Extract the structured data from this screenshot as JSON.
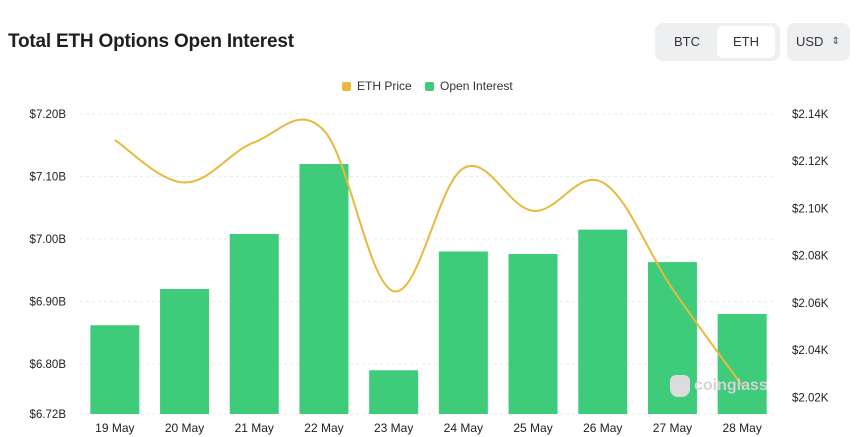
{
  "header": {
    "title": "Total ETH Options Open Interest",
    "toggle": {
      "btc_label": "BTC",
      "eth_label": "ETH",
      "selected": "ETH"
    },
    "currency": {
      "label": "USD",
      "icon": "updown-chevron-icon"
    }
  },
  "watermark": "coinglass",
  "colors": {
    "bars": "#3ecb7a",
    "price_line": "#e8b93c"
  },
  "chart_data": {
    "type": "bar",
    "title": "Total ETH Options Open Interest",
    "legend": {
      "placement": "top-center",
      "entries": [
        "ETH Price",
        "Open Interest"
      ]
    },
    "categories": [
      "19 May",
      "20 May",
      "21 May",
      "22 May",
      "23 May",
      "24 May",
      "25 May",
      "26 May",
      "27 May",
      "28 May"
    ],
    "y_left": {
      "ticks": [
        "$7.20B",
        "$7.10B",
        "$7.00B",
        "$6.90B",
        "$6.80B",
        "$6.72B"
      ],
      "tick_values": [
        7.2,
        7.1,
        7.0,
        6.9,
        6.8,
        6.72
      ],
      "range": [
        6.72,
        7.2
      ],
      "unit": "B USD"
    },
    "y_right": {
      "ticks": [
        "$2.14K",
        "$2.12K",
        "$2.10K",
        "$2.08K",
        "$2.06K",
        "$2.04K",
        "$2.02K"
      ],
      "tick_values": [
        2.14,
        2.12,
        2.1,
        2.08,
        2.06,
        2.04,
        2.02
      ],
      "range": [
        2.013,
        2.14
      ],
      "unit": "K USD"
    },
    "grid": true,
    "series": [
      {
        "name": "Open Interest",
        "type": "bar",
        "axis": "left",
        "color": "#3ecb7a",
        "values": [
          6.862,
          6.92,
          7.008,
          7.12,
          6.79,
          6.98,
          6.976,
          7.015,
          6.963,
          6.88
        ]
      },
      {
        "name": "ETH Price",
        "type": "line",
        "axis": "right",
        "color": "#e8b93c",
        "values": [
          2.129,
          2.111,
          2.128,
          2.133,
          2.065,
          2.117,
          2.099,
          2.111,
          2.066,
          2.025
        ]
      }
    ]
  }
}
